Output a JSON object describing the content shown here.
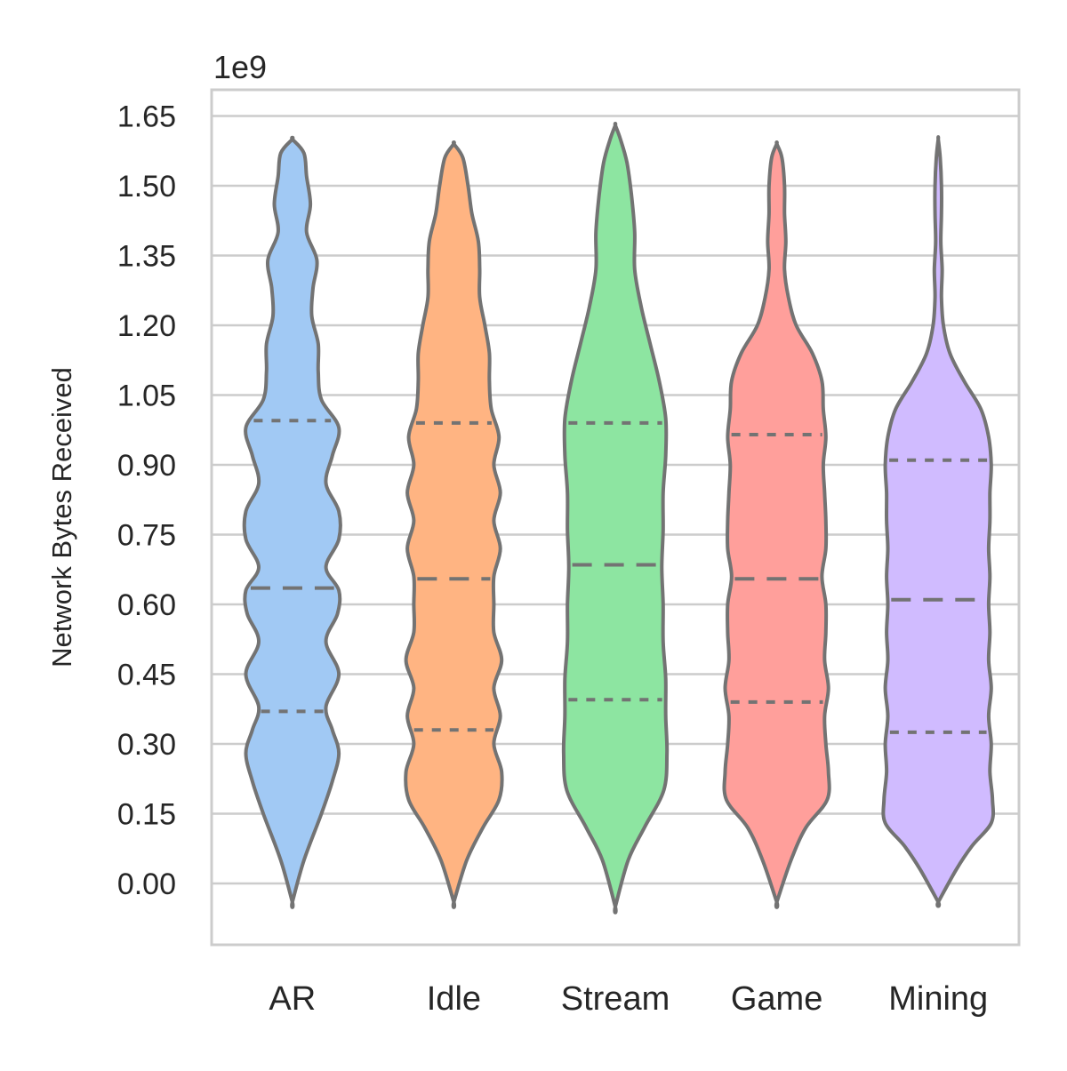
{
  "chart_data": {
    "type": "violin",
    "title": "",
    "xlabel": "",
    "ylabel": "Network Bytes Received",
    "y_offset_label": "1e9",
    "y_scale_multiplier": 1000000000,
    "ylim": [
      -0.12,
      1.72
    ],
    "yticks": [
      0.0,
      0.15,
      0.3,
      0.45,
      0.6,
      0.75,
      0.9,
      1.05,
      1.2,
      1.35,
      1.5,
      1.65
    ],
    "ytick_labels": [
      "0.00",
      "0.15",
      "0.30",
      "0.45",
      "0.60",
      "0.75",
      "0.90",
      "1.05",
      "1.20",
      "1.35",
      "1.50",
      "1.65"
    ],
    "grid": "horizontal",
    "legend": "none",
    "inner": "quartile",
    "categories": [
      "AR",
      "Idle",
      "Stream",
      "Game",
      "Mining"
    ],
    "colors": [
      "#a1c9f4",
      "#ffb482",
      "#8de5a1",
      "#ff9f9b",
      "#d0bbff"
    ],
    "outline_color": "#737373",
    "series": [
      {
        "category": "AR",
        "min": -0.04,
        "max": 1.6,
        "quartiles": [
          0.37,
          0.635,
          0.995
        ],
        "density_y": [
          -0.04,
          0.05,
          0.15,
          0.22,
          0.28,
          0.33,
          0.38,
          0.45,
          0.52,
          0.58,
          0.63,
          0.68,
          0.74,
          0.8,
          0.86,
          0.92,
          0.98,
          1.04,
          1.1,
          1.16,
          1.22,
          1.28,
          1.34,
          1.4,
          1.46,
          1.52,
          1.57,
          1.6
        ],
        "density_w": [
          0.0,
          0.18,
          0.45,
          0.62,
          0.72,
          0.62,
          0.52,
          0.72,
          0.52,
          0.7,
          0.72,
          0.52,
          0.72,
          0.72,
          0.52,
          0.62,
          0.72,
          0.45,
          0.4,
          0.4,
          0.3,
          0.32,
          0.38,
          0.22,
          0.28,
          0.22,
          0.18,
          0.0
        ]
      },
      {
        "category": "Idle",
        "min": -0.04,
        "max": 1.59,
        "quartiles": [
          0.33,
          0.655,
          0.99
        ],
        "density_y": [
          -0.04,
          0.05,
          0.12,
          0.18,
          0.24,
          0.3,
          0.36,
          0.42,
          0.48,
          0.54,
          0.6,
          0.66,
          0.72,
          0.78,
          0.84,
          0.9,
          0.96,
          1.02,
          1.08,
          1.14,
          1.2,
          1.26,
          1.32,
          1.38,
          1.44,
          1.5,
          1.56,
          1.59
        ],
        "density_w": [
          0.0,
          0.2,
          0.45,
          0.7,
          0.74,
          0.62,
          0.72,
          0.62,
          0.74,
          0.62,
          0.62,
          0.62,
          0.72,
          0.62,
          0.72,
          0.62,
          0.7,
          0.58,
          0.55,
          0.55,
          0.48,
          0.4,
          0.4,
          0.38,
          0.28,
          0.22,
          0.14,
          0.0
        ]
      },
      {
        "category": "Stream",
        "min": -0.05,
        "max": 1.63,
        "quartiles": [
          0.395,
          0.685,
          0.99
        ],
        "density_y": [
          -0.05,
          0.05,
          0.12,
          0.2,
          0.28,
          0.36,
          0.44,
          0.52,
          0.6,
          0.68,
          0.76,
          0.84,
          0.92,
          1.0,
          1.08,
          1.16,
          1.24,
          1.32,
          1.4,
          1.48,
          1.55,
          1.6,
          1.63
        ],
        "density_w": [
          0.0,
          0.2,
          0.45,
          0.75,
          0.8,
          0.78,
          0.78,
          0.74,
          0.74,
          0.72,
          0.74,
          0.74,
          0.78,
          0.78,
          0.68,
          0.54,
          0.4,
          0.3,
          0.3,
          0.25,
          0.18,
          0.08,
          0.0
        ]
      },
      {
        "category": "Game",
        "min": -0.04,
        "max": 1.59,
        "quartiles": [
          0.39,
          0.655,
          0.965
        ],
        "density_y": [
          -0.04,
          0.05,
          0.12,
          0.18,
          0.24,
          0.3,
          0.36,
          0.42,
          0.48,
          0.54,
          0.6,
          0.66,
          0.72,
          0.78,
          0.84,
          0.9,
          0.96,
          1.02,
          1.08,
          1.14,
          1.2,
          1.26,
          1.32,
          1.38,
          1.44,
          1.5,
          1.56,
          1.59
        ],
        "density_w": [
          0.0,
          0.22,
          0.45,
          0.78,
          0.8,
          0.76,
          0.74,
          0.8,
          0.74,
          0.76,
          0.76,
          0.7,
          0.76,
          0.76,
          0.74,
          0.72,
          0.76,
          0.72,
          0.7,
          0.55,
          0.3,
          0.18,
          0.12,
          0.14,
          0.12,
          0.12,
          0.08,
          0.0
        ]
      },
      {
        "category": "Mining",
        "min": -0.04,
        "max": 1.6,
        "quartiles": [
          0.325,
          0.61,
          0.91
        ],
        "density_y": [
          -0.04,
          0.03,
          0.08,
          0.13,
          0.18,
          0.24,
          0.3,
          0.36,
          0.42,
          0.48,
          0.54,
          0.6,
          0.66,
          0.72,
          0.78,
          0.84,
          0.9,
          0.96,
          1.02,
          1.08,
          1.14,
          1.2,
          1.26,
          1.32,
          1.38,
          1.44,
          1.5,
          1.56,
          1.6
        ],
        "density_w": [
          0.0,
          0.28,
          0.52,
          0.82,
          0.84,
          0.8,
          0.82,
          0.78,
          0.82,
          0.78,
          0.8,
          0.78,
          0.8,
          0.78,
          0.8,
          0.8,
          0.82,
          0.78,
          0.66,
          0.4,
          0.18,
          0.08,
          0.05,
          0.06,
          0.04,
          0.05,
          0.05,
          0.03,
          0.0
        ]
      }
    ]
  }
}
